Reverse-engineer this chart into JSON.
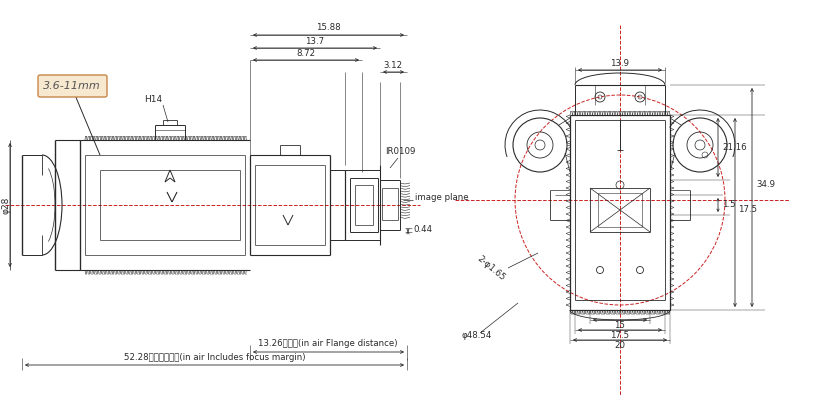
{
  "bg_color": "#ffffff",
  "line_color": "#2a2a2a",
  "dim_color": "#2a2a2a",
  "red_color": "#cc2222",
  "label_box_fill": "#f7e8d0",
  "label_box_edge": "#c8864a",
  "annotations": {
    "label": "3.6-11mm",
    "dim_15_88": "15.88",
    "dim_13_7": "13.7",
    "dim_8_72": "8.72",
    "dim_3_12": "3.12",
    "dim_H14": "H14",
    "dim_IR0109": "IR0109",
    "dim_image_plane": "image plane",
    "dim_phi28": "φ28",
    "dim_0_44": "0.44",
    "dim_flange": "13.26法兰距(in air Flange distance)",
    "dim_focus": "52.28包含对焦余量(in air Includes focus margin)",
    "dim_13_9": "13.9",
    "dim_21_16": "21.16",
    "dim_34_9": "34.9",
    "dim_1_5": "1.5",
    "dim_17_5_right": "17.5",
    "dim_15": "15",
    "dim_17_5_bottom": "17.5",
    "dim_20": "20",
    "dim_phi4854": "φ48.54",
    "dim_2phi165": "2-φ1.65"
  }
}
